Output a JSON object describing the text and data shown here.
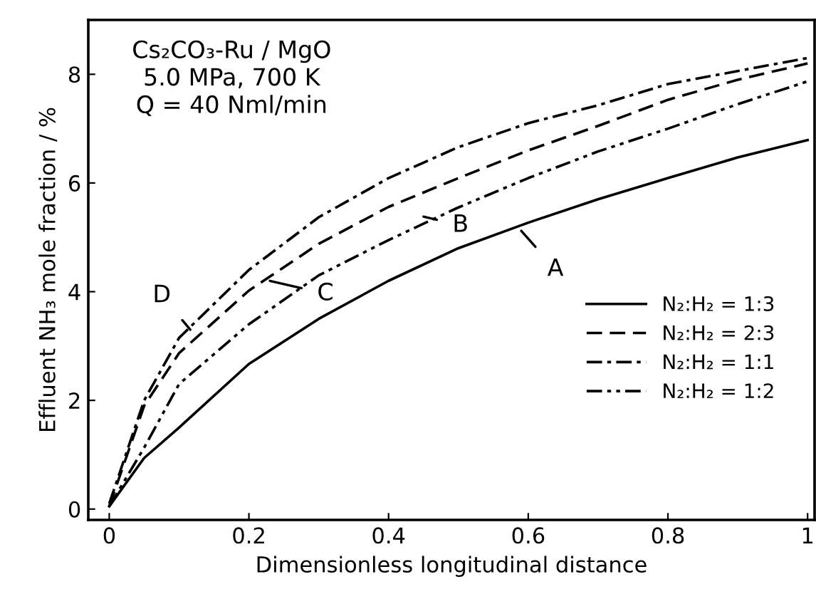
{
  "chart_data": {
    "type": "line",
    "xlabel": "Dimensionless longitudinal distance",
    "ylabel": "Effluent NH₃ mole fraction / %",
    "x": [
      0,
      0.05,
      0.1,
      0.2,
      0.3,
      0.4,
      0.5,
      0.6,
      0.7,
      0.8,
      0.9,
      1.0
    ],
    "series": [
      {
        "name": "N₂:H₂ = 1:3",
        "color": "#000000",
        "line_style": "solid",
        "values": [
          0.05,
          0.94,
          1.5,
          2.67,
          3.5,
          4.2,
          4.8,
          5.27,
          5.7,
          6.09,
          6.47,
          6.79
        ]
      },
      {
        "name": "N₂:H₂ = 2:3",
        "color": "#000000",
        "line_style": "dashed",
        "values": [
          0.05,
          1.9,
          2.87,
          4.02,
          4.88,
          5.56,
          6.09,
          6.6,
          7.05,
          7.53,
          7.9,
          8.2
        ]
      },
      {
        "name": "N₂:H₂ = 1:1",
        "color": "#000000",
        "line_style": "dashdot",
        "values": [
          0.1,
          2.0,
          3.15,
          4.4,
          5.37,
          6.09,
          6.66,
          7.1,
          7.43,
          7.82,
          8.06,
          8.3
        ]
      },
      {
        "name": "N₂:H₂ = 1:2",
        "color": "#000000",
        "line_style": "dashdotdot",
        "values": [
          0.05,
          1.13,
          2.3,
          3.4,
          4.3,
          4.95,
          5.55,
          6.09,
          6.58,
          7.0,
          7.45,
          7.87
        ]
      }
    ],
    "xlim": [
      -0.03,
      1.01
    ],
    "ylim": [
      -0.2,
      9.0
    ],
    "xticks": [
      0,
      0.2,
      0.4,
      0.6,
      0.8,
      1
    ],
    "yticks": [
      0,
      2,
      4,
      6,
      8
    ],
    "grid": false,
    "legend": "bottom right",
    "marker": "none",
    "annotations": [
      "Cs₂CO₃-Ru / MgO\n5.0 MPa, 700 K\nQ = 40 Nml/min",
      {
        "text": "A",
        "x": 0.59,
        "y": 5.12
      },
      {
        "text": "B",
        "x": 0.45,
        "y": 5.38
      },
      {
        "text": "C",
        "x": 0.23,
        "y": 4.2
      },
      {
        "text": "D",
        "x": 0.116,
        "y": 3.3
      }
    ]
  }
}
